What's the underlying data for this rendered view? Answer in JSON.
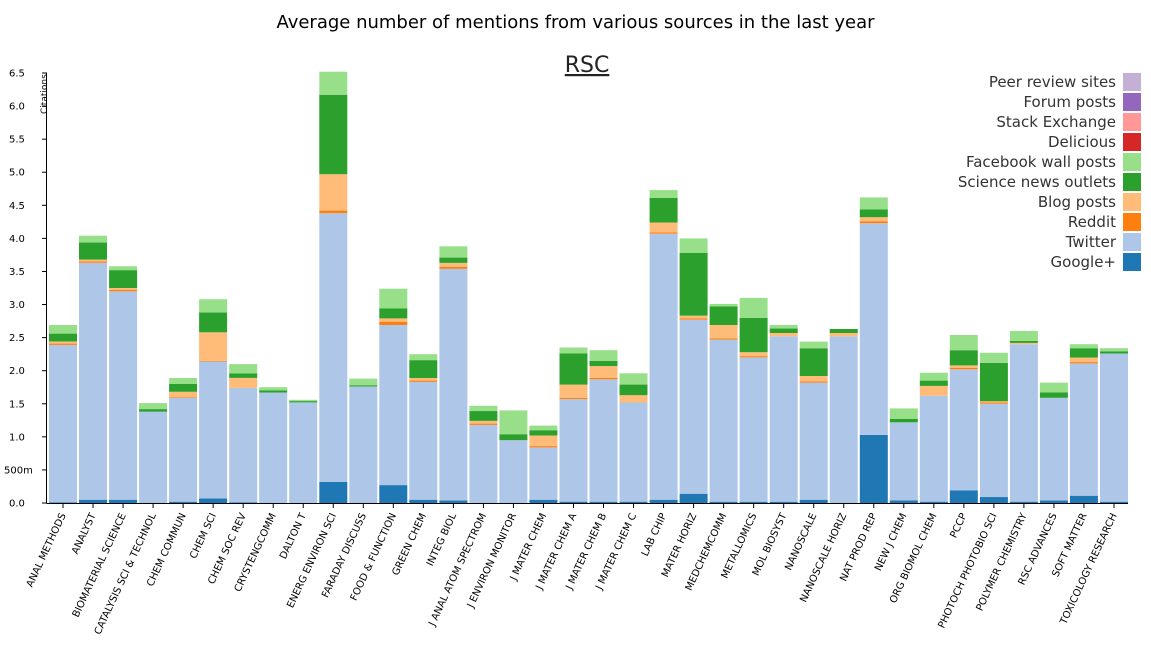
{
  "title": "Average number of mentions from various sources in the last year",
  "chart_data": {
    "type": "bar",
    "stacked": true,
    "subtitle": "RSC",
    "ylabel": "Citations",
    "ylim": [
      0,
      6.5
    ],
    "yticks": [
      "0.0",
      "500m",
      "1.0",
      "1.5",
      "2.0",
      "2.5",
      "3.0",
      "3.5",
      "4.0",
      "4.5",
      "5.0",
      "5.5",
      "6.0",
      "6.5"
    ],
    "legend_position": "top-right",
    "categories": [
      "ANAL METHODS",
      "ANALYST",
      "BIOMATERIAL SCIENCE",
      "CATALYSIS SCI & TECHNOL",
      "CHEM COMMUN",
      "CHEM SCI",
      "CHEM SOC REV",
      "CRYSTENGCOMM",
      "DALTON T",
      "ENERG ENVIRON SCI",
      "FARADAY DISCUSS",
      "FOOD & FUNCTION",
      "GREEN CHEM",
      "INTEG BIOL",
      "J ANAL ATOM SPECTROM",
      "J ENVIRON MONITOR",
      "J MATER CHEM",
      "J MATER CHEM A",
      "J MATER CHEM B",
      "J MATER CHEM C",
      "LAB CHIP",
      "MATER HORIZ",
      "MEDCHEMCOMM",
      "METALLOMICS",
      "MOL BIOSYST",
      "NANOSCALE",
      "NANOSCALE HORIZ",
      "NAT PROD REP",
      "NEW J CHEM",
      "ORG BIOMOL CHEM",
      "PCCP",
      "PHOTOCH PHOTOBIO SCI",
      "POLYMER CHEMISTRY",
      "RSC ADVANCES",
      "SOFT MATTER",
      "TOXICOLOGY RESEARCH"
    ],
    "series": [
      {
        "name": "Google+",
        "color": "#1f77b4",
        "values": [
          0.01,
          0.05,
          0.05,
          0.0,
          0.02,
          0.07,
          0.01,
          0.0,
          0.0,
          0.32,
          0.0,
          0.27,
          0.05,
          0.04,
          0.0,
          0.0,
          0.05,
          0.02,
          0.02,
          0.02,
          0.05,
          0.14,
          0.02,
          0.02,
          0.02,
          0.05,
          0.0,
          1.03,
          0.04,
          0.02,
          0.19,
          0.09,
          0.02,
          0.04,
          0.11,
          0.02
        ]
      },
      {
        "name": "Twitter",
        "color": "#aec7e8",
        "values": [
          2.38,
          3.58,
          3.15,
          1.38,
          1.57,
          2.07,
          1.73,
          1.67,
          1.52,
          4.06,
          1.76,
          2.42,
          1.78,
          3.5,
          1.18,
          0.95,
          0.79,
          1.55,
          1.85,
          1.5,
          4.02,
          2.63,
          2.45,
          2.18,
          2.5,
          1.77,
          2.52,
          3.2,
          1.18,
          1.6,
          1.83,
          1.41,
          2.38,
          1.55,
          2.0,
          2.24
        ]
      },
      {
        "name": "Reddit",
        "color": "#ff7f0e",
        "values": [
          0.02,
          0.02,
          0.02,
          0.0,
          0.01,
          0.01,
          0.0,
          0.0,
          0.0,
          0.04,
          0.0,
          0.05,
          0.02,
          0.03,
          0.02,
          0.0,
          0.02,
          0.02,
          0.02,
          0.0,
          0.02,
          0.02,
          0.02,
          0.02,
          0.0,
          0.02,
          0.0,
          0.03,
          0.0,
          0.0,
          0.02,
          0.02,
          0.0,
          0.0,
          0.02,
          0.0
        ]
      },
      {
        "name": "Blog posts",
        "color": "#ffbb78",
        "values": [
          0.03,
          0.03,
          0.03,
          0.0,
          0.08,
          0.43,
          0.15,
          0.0,
          0.0,
          0.55,
          0.0,
          0.05,
          0.04,
          0.06,
          0.04,
          0.0,
          0.16,
          0.2,
          0.18,
          0.11,
          0.15,
          0.04,
          0.2,
          0.06,
          0.05,
          0.08,
          0.05,
          0.06,
          0.0,
          0.15,
          0.04,
          0.02,
          0.02,
          0.0,
          0.07,
          0.0
        ]
      },
      {
        "name": "Science news outlets",
        "color": "#2ca02c",
        "values": [
          0.12,
          0.26,
          0.27,
          0.04,
          0.12,
          0.3,
          0.07,
          0.03,
          0.02,
          1.2,
          0.02,
          0.15,
          0.27,
          0.08,
          0.15,
          0.09,
          0.08,
          0.47,
          0.08,
          0.16,
          0.37,
          0.95,
          0.28,
          0.52,
          0.07,
          0.42,
          0.06,
          0.12,
          0.05,
          0.08,
          0.23,
          0.58,
          0.03,
          0.08,
          0.14,
          0.03
        ]
      },
      {
        "name": "Facebook wall posts",
        "color": "#98df8a",
        "values": [
          0.13,
          0.1,
          0.06,
          0.09,
          0.09,
          0.2,
          0.14,
          0.05,
          0.02,
          0.35,
          0.1,
          0.3,
          0.09,
          0.17,
          0.08,
          0.36,
          0.07,
          0.09,
          0.16,
          0.17,
          0.12,
          0.22,
          0.04,
          0.3,
          0.05,
          0.1,
          0.0,
          0.18,
          0.16,
          0.12,
          0.23,
          0.15,
          0.15,
          0.15,
          0.06,
          0.05
        ]
      },
      {
        "name": "Delicious",
        "color": "#d62728",
        "values": [
          0,
          0,
          0,
          0,
          0,
          0,
          0,
          0,
          0,
          0,
          0,
          0,
          0,
          0,
          0,
          0,
          0,
          0,
          0,
          0,
          0,
          0,
          0,
          0,
          0,
          0,
          0,
          0,
          0,
          0,
          0,
          0,
          0,
          0,
          0,
          0
        ]
      },
      {
        "name": "Stack Exchange",
        "color": "#ff9896",
        "values": [
          0,
          0,
          0,
          0,
          0,
          0,
          0,
          0,
          0,
          0,
          0,
          0,
          0,
          0,
          0,
          0,
          0,
          0,
          0,
          0,
          0,
          0,
          0,
          0,
          0,
          0,
          0,
          0,
          0,
          0,
          0,
          0,
          0,
          0,
          0,
          0
        ]
      },
      {
        "name": "Forum posts",
        "color": "#9467bd",
        "values": [
          0,
          0,
          0,
          0,
          0,
          0,
          0,
          0,
          0,
          0,
          0,
          0,
          0,
          0,
          0,
          0,
          0,
          0,
          0,
          0,
          0,
          0,
          0,
          0,
          0,
          0,
          0,
          0,
          0,
          0,
          0,
          0,
          0,
          0,
          0,
          0
        ]
      },
      {
        "name": "Peer review sites",
        "color": "#c5b0d5",
        "values": [
          0,
          0,
          0,
          0,
          0,
          0,
          0,
          0,
          0,
          0,
          0,
          0,
          0,
          0,
          0,
          0,
          0,
          0,
          0,
          0,
          0,
          0,
          0,
          0,
          0,
          0,
          0,
          0,
          0,
          0,
          0,
          0,
          0,
          0,
          0,
          0
        ]
      }
    ],
    "legend_order": [
      "Peer review sites",
      "Forum posts",
      "Stack Exchange",
      "Delicious",
      "Facebook wall posts",
      "Science news outlets",
      "Blog posts",
      "Reddit",
      "Twitter",
      "Google+"
    ]
  }
}
